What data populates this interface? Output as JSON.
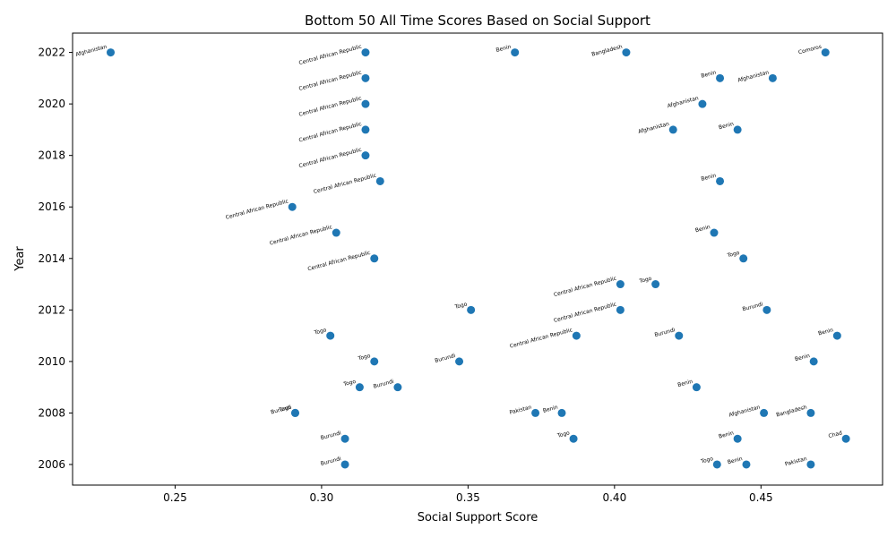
{
  "chart_data": {
    "type": "scatter",
    "title": "Bottom 50 All Time Scores Based on Social Support",
    "xlabel": "Social Support Score",
    "ylabel": "Year",
    "xlim": [
      0.215,
      0.4915
    ],
    "ylim": [
      2005.2,
      2022.75
    ],
    "x_ticks": [
      0.25,
      0.3,
      0.35,
      0.4,
      0.45
    ],
    "x_tick_labels": [
      "0.25",
      "0.30",
      "0.35",
      "0.40",
      "0.45"
    ],
    "y_ticks": [
      2006,
      2008,
      2010,
      2012,
      2014,
      2016,
      2018,
      2020,
      2022
    ],
    "y_tick_labels": [
      "2006",
      "2008",
      "2010",
      "2012",
      "2014",
      "2016",
      "2018",
      "2020",
      "2022"
    ],
    "grid": false,
    "marker_color": "#1f77b4",
    "points": [
      {
        "x": 0.228,
        "y": 2022,
        "label": "Afghanistan"
      },
      {
        "x": 0.315,
        "y": 2022,
        "label": "Central African Republic"
      },
      {
        "x": 0.366,
        "y": 2022,
        "label": "Benin"
      },
      {
        "x": 0.404,
        "y": 2022,
        "label": "Bangladesh"
      },
      {
        "x": 0.472,
        "y": 2022,
        "label": "Comoros"
      },
      {
        "x": 0.315,
        "y": 2021,
        "label": "Central African Republic"
      },
      {
        "x": 0.436,
        "y": 2021,
        "label": "Benin"
      },
      {
        "x": 0.454,
        "y": 2021,
        "label": "Afghanistan"
      },
      {
        "x": 0.315,
        "y": 2020,
        "label": "Central African Republic"
      },
      {
        "x": 0.43,
        "y": 2020,
        "label": "Afghanistan"
      },
      {
        "x": 0.315,
        "y": 2019,
        "label": "Central African Republic"
      },
      {
        "x": 0.42,
        "y": 2019,
        "label": "Afghanistan"
      },
      {
        "x": 0.442,
        "y": 2019,
        "label": "Benin"
      },
      {
        "x": 0.315,
        "y": 2018,
        "label": "Central African Republic"
      },
      {
        "x": 0.32,
        "y": 2017,
        "label": "Central African Republic"
      },
      {
        "x": 0.436,
        "y": 2017,
        "label": "Benin"
      },
      {
        "x": 0.29,
        "y": 2016,
        "label": "Central African Republic"
      },
      {
        "x": 0.305,
        "y": 2015,
        "label": "Central African Republic"
      },
      {
        "x": 0.434,
        "y": 2015,
        "label": "Benin"
      },
      {
        "x": 0.318,
        "y": 2014,
        "label": "Central African Republic"
      },
      {
        "x": 0.444,
        "y": 2014,
        "label": "Togo"
      },
      {
        "x": 0.402,
        "y": 2013,
        "label": "Central African Republic"
      },
      {
        "x": 0.414,
        "y": 2013,
        "label": "Togo"
      },
      {
        "x": 0.351,
        "y": 2012,
        "label": "Togo"
      },
      {
        "x": 0.402,
        "y": 2012,
        "label": "Central African Republic"
      },
      {
        "x": 0.452,
        "y": 2012,
        "label": "Burundi"
      },
      {
        "x": 0.303,
        "y": 2011,
        "label": "Togo"
      },
      {
        "x": 0.387,
        "y": 2011,
        "label": "Central African Republic"
      },
      {
        "x": 0.422,
        "y": 2011,
        "label": "Burundi"
      },
      {
        "x": 0.476,
        "y": 2011,
        "label": "Benin"
      },
      {
        "x": 0.318,
        "y": 2010,
        "label": "Togo"
      },
      {
        "x": 0.347,
        "y": 2010,
        "label": "Burundi"
      },
      {
        "x": 0.468,
        "y": 2010,
        "label": "Benin"
      },
      {
        "x": 0.313,
        "y": 2009,
        "label": "Togo"
      },
      {
        "x": 0.326,
        "y": 2009,
        "label": "Burundi"
      },
      {
        "x": 0.428,
        "y": 2009,
        "label": "Benin"
      },
      {
        "x": 0.291,
        "y": 2008,
        "label": "Burundi"
      },
      {
        "x": 0.291,
        "y": 2008,
        "label": "Togo"
      },
      {
        "x": 0.373,
        "y": 2008,
        "label": "Pakistan"
      },
      {
        "x": 0.382,
        "y": 2008,
        "label": "Benin"
      },
      {
        "x": 0.451,
        "y": 2008,
        "label": "Afghanistan"
      },
      {
        "x": 0.467,
        "y": 2008,
        "label": "Bangladesh"
      },
      {
        "x": 0.308,
        "y": 2007,
        "label": "Burundi"
      },
      {
        "x": 0.386,
        "y": 2007,
        "label": "Togo"
      },
      {
        "x": 0.442,
        "y": 2007,
        "label": "Benin"
      },
      {
        "x": 0.479,
        "y": 2007,
        "label": "Chad"
      },
      {
        "x": 0.308,
        "y": 2006,
        "label": "Burundi"
      },
      {
        "x": 0.435,
        "y": 2006,
        "label": "Togo"
      },
      {
        "x": 0.445,
        "y": 2006,
        "label": "Benin"
      },
      {
        "x": 0.467,
        "y": 2006,
        "label": "Pakistan"
      }
    ]
  }
}
